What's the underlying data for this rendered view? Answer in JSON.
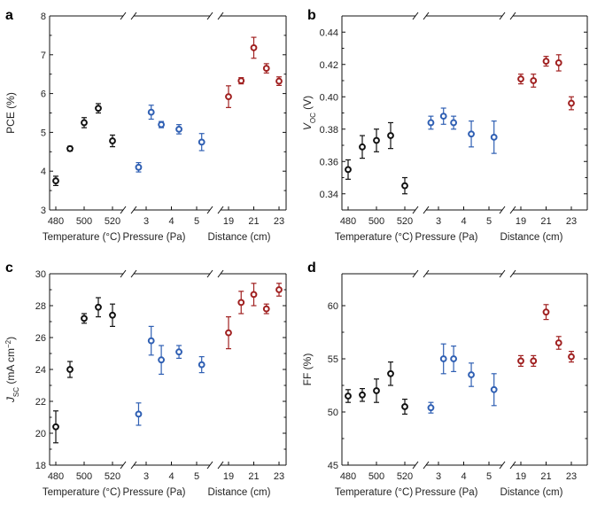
{
  "colors": {
    "temperature": "#111111",
    "pressure": "#2f5fb3",
    "distance": "#a02020"
  },
  "chart_data": [
    {
      "type": "scatter",
      "panel_label": "a",
      "ylabel": "PCE (%)",
      "ylim": [
        3,
        8
      ],
      "yticks": [
        "3",
        "4",
        "5",
        "6",
        "7",
        "8"
      ],
      "groups": [
        {
          "name": "Temperature (°C)",
          "tick_labels": [
            "480",
            "500",
            "520"
          ],
          "x": [
            480,
            490,
            500,
            510,
            520
          ],
          "values": [
            3.75,
            4.58,
            5.25,
            5.62,
            4.78
          ],
          "errors": [
            0.12,
            0.06,
            0.13,
            0.12,
            0.15
          ]
        },
        {
          "name": "Pressure (Pa)",
          "tick_labels": [
            "3",
            "4",
            "5"
          ],
          "x": [
            2.7,
            3.2,
            3.6,
            4.3,
            5.2
          ],
          "values": [
            4.1,
            5.52,
            5.2,
            5.08,
            4.75
          ],
          "errors": [
            0.12,
            0.18,
            0.08,
            0.12,
            0.22
          ]
        },
        {
          "name": "Distance (cm)",
          "tick_labels": [
            "19",
            "21",
            "23"
          ],
          "x": [
            19,
            20,
            21,
            22,
            23
          ],
          "values": [
            5.92,
            6.33,
            7.18,
            6.65,
            6.32
          ],
          "errors": [
            0.28,
            0.08,
            0.27,
            0.12,
            0.11
          ]
        }
      ]
    },
    {
      "type": "scatter",
      "panel_label": "b",
      "ylabel": "V_OC (V)",
      "ylim": [
        0.33,
        0.45
      ],
      "yticks": [
        "0.34",
        "0.36",
        "0.38",
        "0.40",
        "0.42",
        "0.44"
      ],
      "groups": [
        {
          "name": "Temperature (°C)",
          "tick_labels": [
            "480",
            "500",
            "520"
          ],
          "x": [
            480,
            490,
            500,
            510,
            520
          ],
          "values": [
            0.355,
            0.369,
            0.373,
            0.376,
            0.345
          ],
          "errors": [
            0.006,
            0.007,
            0.007,
            0.008,
            0.005
          ]
        },
        {
          "name": "Pressure (Pa)",
          "tick_labels": [
            "3",
            "4",
            "5"
          ],
          "x": [
            2.7,
            3.2,
            3.6,
            4.3,
            5.2
          ],
          "values": [
            0.384,
            0.388,
            0.384,
            0.377,
            0.375
          ],
          "errors": [
            0.004,
            0.005,
            0.004,
            0.008,
            0.01
          ]
        },
        {
          "name": "Distance (cm)",
          "tick_labels": [
            "19",
            "21",
            "23"
          ],
          "x": [
            19,
            20,
            21,
            22,
            23
          ],
          "values": [
            0.411,
            0.41,
            0.422,
            0.421,
            0.396
          ],
          "errors": [
            0.003,
            0.004,
            0.003,
            0.005,
            0.004
          ]
        }
      ]
    },
    {
      "type": "scatter",
      "panel_label": "c",
      "ylabel": "J_SC (mA cm^-2)",
      "ylim": [
        18,
        30
      ],
      "yticks": [
        "18",
        "20",
        "22",
        "24",
        "26",
        "28",
        "30"
      ],
      "groups": [
        {
          "name": "Temperature (°C)",
          "tick_labels": [
            "480",
            "500",
            "520"
          ],
          "x": [
            480,
            490,
            500,
            510,
            520
          ],
          "values": [
            20.4,
            24.0,
            27.2,
            27.9,
            27.4
          ],
          "errors": [
            1.0,
            0.5,
            0.3,
            0.6,
            0.7
          ]
        },
        {
          "name": "Pressure (Pa)",
          "tick_labels": [
            "3",
            "4",
            "5"
          ],
          "x": [
            2.7,
            3.2,
            3.6,
            4.3,
            5.2
          ],
          "values": [
            21.2,
            25.8,
            24.6,
            25.1,
            24.3
          ],
          "errors": [
            0.7,
            0.9,
            0.9,
            0.4,
            0.5
          ]
        },
        {
          "name": "Distance (cm)",
          "tick_labels": [
            "19",
            "21",
            "23"
          ],
          "x": [
            19,
            20,
            21,
            22,
            23
          ],
          "values": [
            26.3,
            28.2,
            28.7,
            27.8,
            29.0
          ],
          "errors": [
            1.0,
            0.7,
            0.7,
            0.3,
            0.4
          ]
        }
      ]
    },
    {
      "type": "scatter",
      "panel_label": "d",
      "ylabel": "FF (%)",
      "ylim": [
        45,
        63
      ],
      "yticks": [
        "45",
        "50",
        "55",
        "60"
      ],
      "groups": [
        {
          "name": "Temperature (°C)",
          "tick_labels": [
            "480",
            "500",
            "520"
          ],
          "x": [
            480,
            490,
            500,
            510,
            520
          ],
          "values": [
            51.5,
            51.6,
            52.0,
            53.6,
            50.5
          ],
          "errors": [
            0.6,
            0.6,
            1.1,
            1.1,
            0.7
          ]
        },
        {
          "name": "Pressure (Pa)",
          "tick_labels": [
            "3",
            "4",
            "5"
          ],
          "x": [
            2.7,
            3.2,
            3.6,
            4.3,
            5.2
          ],
          "values": [
            50.4,
            55.0,
            55.0,
            53.5,
            52.1
          ],
          "errors": [
            0.5,
            1.4,
            1.2,
            1.1,
            1.5
          ]
        },
        {
          "name": "Distance (cm)",
          "tick_labels": [
            "19",
            "21",
            "23"
          ],
          "x": [
            19,
            20,
            21,
            22,
            23
          ],
          "values": [
            54.8,
            54.8,
            59.4,
            56.5,
            55.2
          ],
          "errors": [
            0.5,
            0.5,
            0.7,
            0.6,
            0.5
          ]
        }
      ]
    }
  ]
}
